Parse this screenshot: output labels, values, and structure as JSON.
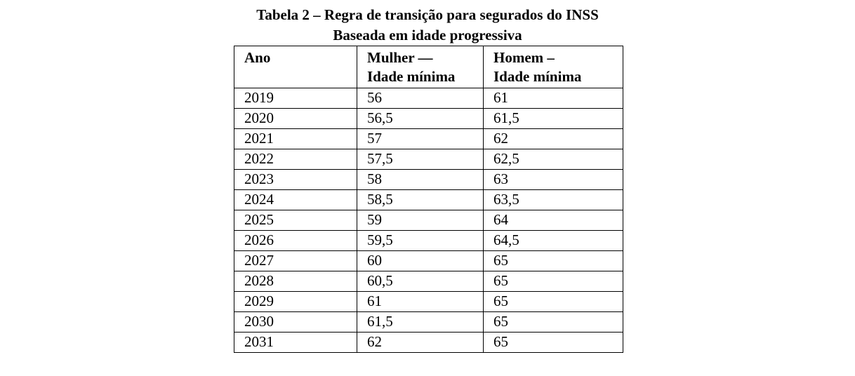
{
  "title": {
    "line1": "Tabela 2 – Regra de transição para segurados do INSS",
    "line2": "Baseada em idade progressiva"
  },
  "table": {
    "headers": [
      {
        "line1": "Ano",
        "line2": ""
      },
      {
        "line1": "Mulher —",
        "line2": "Idade mínima"
      },
      {
        "line1": "Homem –",
        "line2": "Idade mínima"
      }
    ],
    "rows": [
      [
        "2019",
        "56",
        "61"
      ],
      [
        "2020",
        "56,5",
        "61,5"
      ],
      [
        "2021",
        "57",
        "62"
      ],
      [
        "2022",
        "57,5",
        "62,5"
      ],
      [
        "2023",
        "58",
        "63"
      ],
      [
        "2024",
        "58,5",
        "63,5"
      ],
      [
        "2025",
        "59",
        "64"
      ],
      [
        "2026",
        "59,5",
        "64,5"
      ],
      [
        "2027",
        "60",
        "65"
      ],
      [
        "2028",
        "60,5",
        "65"
      ],
      [
        "2029",
        "61",
        "65"
      ],
      [
        "2030",
        "61,5",
        "65"
      ],
      [
        "2031",
        "62",
        "65"
      ]
    ]
  }
}
